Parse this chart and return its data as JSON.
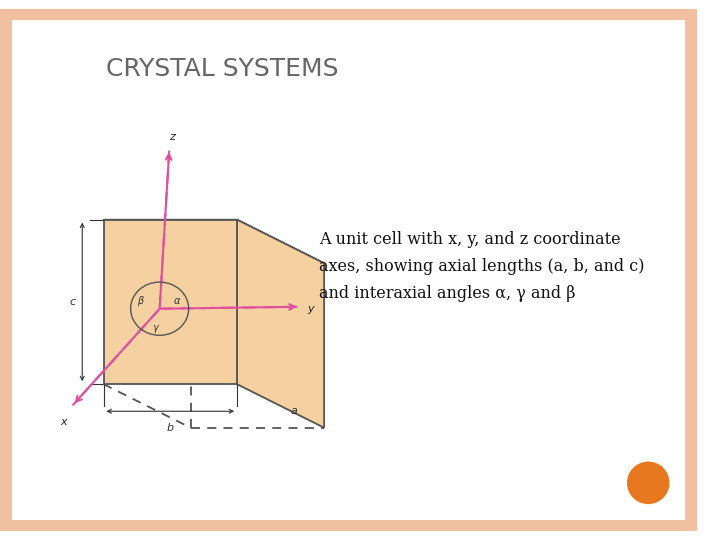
{
  "title": "CRYSTAL SYSTEMS",
  "title_fontsize": 18,
  "title_color": "#666666",
  "bg_color": "#ffffff",
  "border_color": "#f0c0a0",
  "box_fill": "#f5d0a0",
  "box_edge": "#555555",
  "axis_color": "#e050a0",
  "dim_color": "#333333",
  "desc_lines": [
    "A unit cell with x, y, and z coordinate",
    "axes, showing axial lengths (a, b, and c)",
    "and interaxial angles α, γ and β"
  ],
  "orange_dot_color": "#e87820"
}
